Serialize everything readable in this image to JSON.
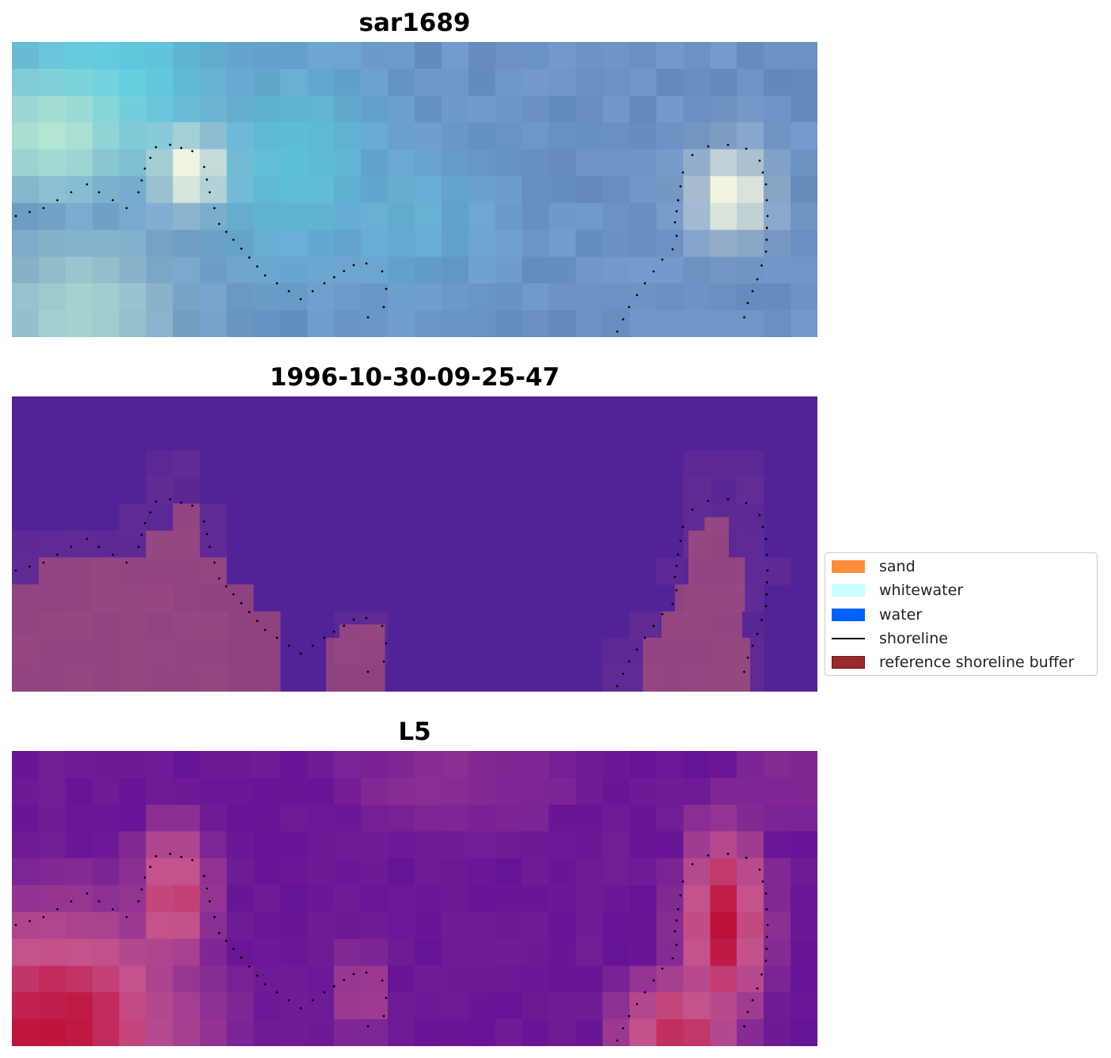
{
  "panels": [
    {
      "title": "sar1689",
      "kind": "rgb"
    },
    {
      "title": "1996-10-30-09-25-47",
      "kind": "classification"
    },
    {
      "title": "L5",
      "kind": "index"
    }
  ],
  "legend": {
    "items": [
      {
        "label": "sand",
        "type": "patch",
        "color": "#ff8c3a"
      },
      {
        "label": "whitewater",
        "type": "patch",
        "color": "#c8ffff"
      },
      {
        "label": "water",
        "type": "patch",
        "color": "#0062ff"
      },
      {
        "label": "shoreline",
        "type": "line",
        "color": "#000000"
      },
      {
        "label": "reference shoreline buffer",
        "type": "patch",
        "color": "#9b2a2a",
        "edge": "#6e1414"
      }
    ]
  },
  "colors": {
    "classification_background": "#522396",
    "buffer_overlay": "#8e4380",
    "shoreline_dots": "#000000"
  }
}
